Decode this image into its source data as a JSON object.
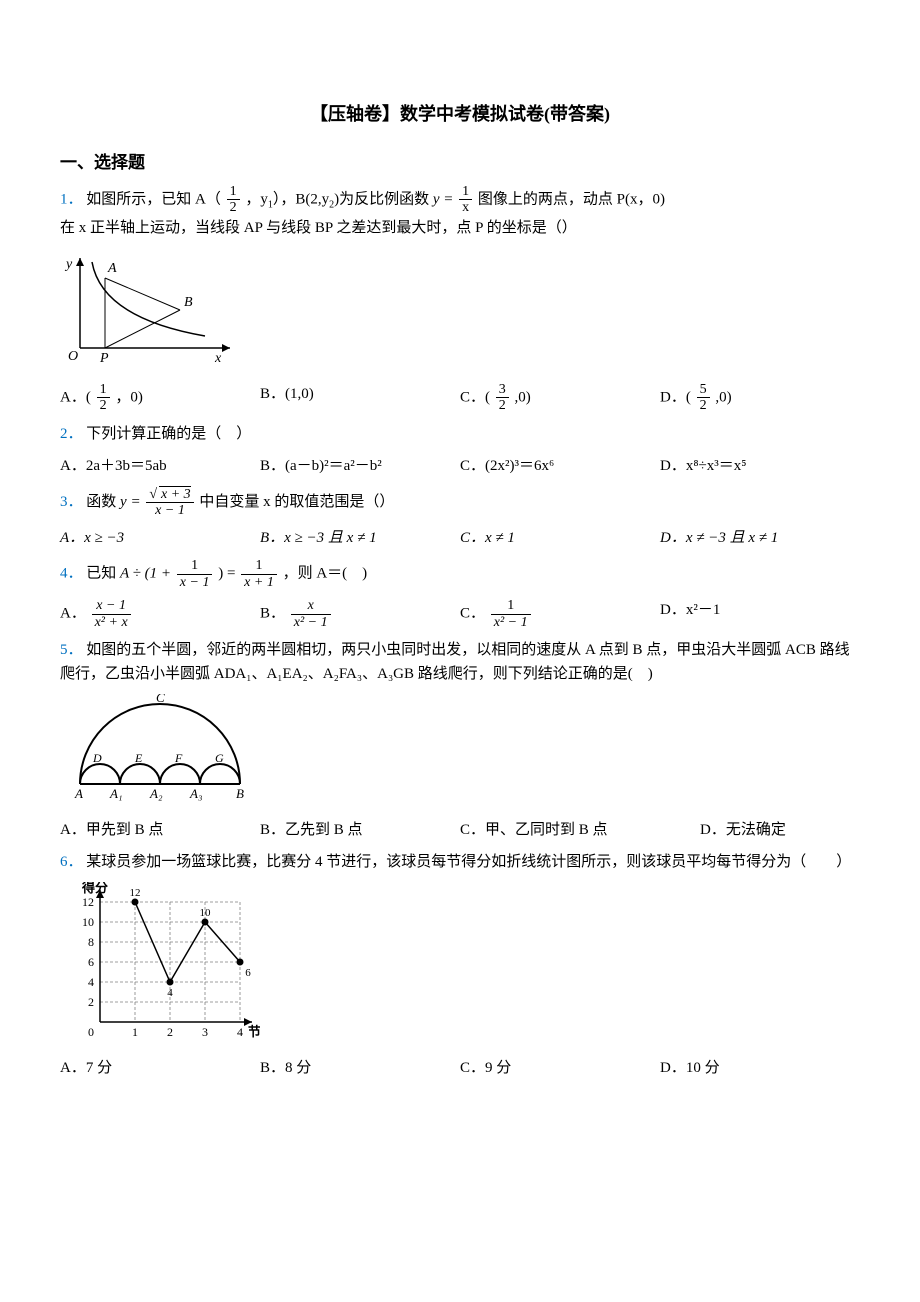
{
  "title": "【压轴卷】数学中考模拟试卷(带答案)",
  "section1": "一、选择题",
  "q1": {
    "num": "1．",
    "text_a": "如图所示，已知 A（",
    "frac_a_num": "1",
    "frac_a_den": "2",
    "text_b": "，y",
    "sub1": "1",
    "text_c": "），B(2,y",
    "sub2": "2",
    "text_d": ")为反比例函数 ",
    "func_y": "y = ",
    "func_num": "1",
    "func_den": "x",
    "text_e": " 图像上的两点，动点 P(x，0)",
    "line2": "在 x 正半轴上运动，当线段 AP 与线段 BP 之差达到最大时，点 P 的坐标是（）",
    "figure": {
      "axes_color": "#000000",
      "curve_color": "#000000",
      "points": [
        "O",
        "P",
        "A",
        "B"
      ],
      "x_label": "x",
      "y_label": "y"
    },
    "optA_lbl": "A．(",
    "optA_num": "1",
    "optA_den": "2",
    "optA_end": "，0)",
    "optB": "B．(1,0)",
    "optC_lbl": "C．(",
    "optC_num": "3",
    "optC_den": "2",
    "optC_end": ",0)",
    "optD_lbl": "D．(",
    "optD_num": "5",
    "optD_den": "2",
    "optD_end": ",0)"
  },
  "q2": {
    "num": "2．",
    "text": "下列计算正确的是（　）",
    "optA": "A．2a＋3b＝5ab",
    "optB": "B．(a－b)²＝a²－b²",
    "optC": "C．(2x²)³＝6x⁶",
    "optD": "D．x⁸÷x³＝x⁵"
  },
  "q3": {
    "num": "3．",
    "text_a": "函数 ",
    "func_y": "y = ",
    "func_num_sqrt": "x + 3",
    "func_den": "x − 1",
    "text_b": " 中自变量 x 的取值范围是（）",
    "optA": "A．x ≥ −3",
    "optB": "B．x ≥ −3 且 x ≠ 1",
    "optC": "C．x ≠ 1",
    "optD": "D．x ≠ −3 且 x ≠ 1"
  },
  "q4": {
    "num": "4．",
    "text_a": "已知 ",
    "expr_A": "A ÷ (1 + ",
    "frac1_num": "1",
    "frac1_den": "x − 1",
    "expr_eq": ") = ",
    "frac2_num": "1",
    "frac2_den": "x + 1",
    "text_b": " ，则 A＝(　)",
    "optA_lbl": "A．",
    "optA_num": "x − 1",
    "optA_den": "x² + x",
    "optB_lbl": "B．",
    "optB_num": "x",
    "optB_den": "x² − 1",
    "optC_lbl": "C．",
    "optC_num": "1",
    "optC_den": "x² − 1",
    "optD": "D．x²－1"
  },
  "q5": {
    "num": "5．",
    "text": "如图的五个半圆，邻近的两半圆相切，两只小虫同时出发，以相同的速度从 A 点到 B 点，甲虫沿大半圆弧 ACB 路线爬行，乙虫沿小半圆弧 ADA₁、A₁EA₂、A₂FA₃、A₃GB 路线爬行，则下列结论正确的是(　)",
    "figure": {
      "big_arc_label": "C",
      "small_labels": [
        "D",
        "E",
        "F",
        "G"
      ],
      "points": [
        "A",
        "A₁",
        "A₂",
        "A₃",
        "B"
      ]
    },
    "optA": "A．甲先到 B 点",
    "optB": "B．乙先到 B 点",
    "optC": "C．甲、乙同时到 B 点",
    "optD": "D．无法确定"
  },
  "q6": {
    "num": "6．",
    "text": "某球员参加一场篮球比赛，比赛分 4 节进行，该球员每节得分如折线统计图所示，则该球员平均每节得分为（　　）",
    "chart": {
      "type": "line",
      "x_label": "节",
      "y_label": "得分",
      "x_values": [
        1,
        2,
        3,
        4
      ],
      "y_values": [
        12,
        4,
        10,
        6
      ],
      "ylim": [
        0,
        12
      ],
      "ytick_step": 2,
      "yticks": [
        0,
        2,
        4,
        6,
        8,
        10,
        12
      ],
      "point_labels": [
        "12",
        "4",
        "10",
        "6"
      ],
      "line_color": "#000000",
      "grid_color": "#808080",
      "background_color": "#ffffff",
      "axis_color": "#000000"
    },
    "optA": "A．7 分",
    "optB": "B．8 分",
    "optC": "C．9 分",
    "optD": "D．10 分"
  }
}
